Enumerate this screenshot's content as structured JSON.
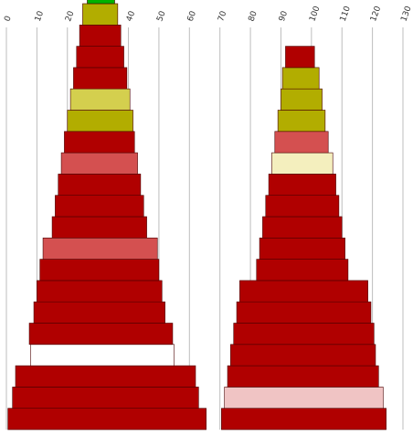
{
  "chart_data": {
    "type": "bar",
    "subtype": "stacked-pyramid",
    "xlim": [
      0,
      130
    ],
    "x_ticks": [
      "0",
      "10",
      "20",
      "30",
      "40",
      "50",
      "60",
      "70",
      "80",
      "90",
      "100",
      "110",
      "120",
      "130"
    ],
    "grid": true,
    "colors": {
      "dark_red": "#b00000",
      "light_red": "#d45050",
      "pink": "#f0c4c4",
      "olive": "#b2ad00",
      "yellow": "#d4cf4e",
      "cream": "#f4efbe",
      "green": "#00b200",
      "white": "#ffffff"
    },
    "stacks": [
      {
        "segments": [
          {
            "start": 0.5,
            "end": 65.5,
            "color": "dark_red"
          },
          {
            "start": 2.0,
            "end": 63.0,
            "color": "dark_red"
          },
          {
            "start": 3.0,
            "end": 62.0,
            "color": "dark_red"
          },
          {
            "start": 8.0,
            "end": 55.0,
            "color": "white"
          },
          {
            "start": 7.5,
            "end": 54.5,
            "color": "dark_red"
          },
          {
            "start": 9.0,
            "end": 52.0,
            "color": "dark_red"
          },
          {
            "start": 10.0,
            "end": 51.0,
            "color": "dark_red"
          },
          {
            "start": 11.0,
            "end": 50.0,
            "color": "dark_red"
          },
          {
            "start": 12.0,
            "end": 49.5,
            "color": "light_red"
          },
          {
            "start": 15.0,
            "end": 46.0,
            "color": "dark_red"
          },
          {
            "start": 16.0,
            "end": 45.0,
            "color": "dark_red"
          },
          {
            "start": 17.0,
            "end": 44.0,
            "color": "dark_red"
          },
          {
            "start": 18.0,
            "end": 43.0,
            "color": "light_red"
          },
          {
            "start": 19.0,
            "end": 42.0,
            "color": "dark_red"
          },
          {
            "start": 20.0,
            "end": 41.5,
            "color": "olive"
          },
          {
            "start": 21.0,
            "end": 40.5,
            "color": "yellow"
          },
          {
            "start": 22.0,
            "end": 39.5,
            "color": "dark_red"
          },
          {
            "start": 23.0,
            "end": 38.5,
            "color": "dark_red"
          },
          {
            "start": 24.0,
            "end": 37.5,
            "color": "dark_red"
          },
          {
            "start": 25.0,
            "end": 36.5,
            "color": "olive"
          },
          {
            "start": 26.5,
            "end": 35.5,
            "color": "green"
          }
        ]
      },
      {
        "segments": [
          {
            "start": 70.5,
            "end": 124.5,
            "color": "dark_red"
          },
          {
            "start": 71.5,
            "end": 123.5,
            "color": "pink"
          },
          {
            "start": 72.5,
            "end": 122.0,
            "color": "dark_red"
          },
          {
            "start": 73.5,
            "end": 121.0,
            "color": "dark_red"
          },
          {
            "start": 74.5,
            "end": 120.5,
            "color": "dark_red"
          },
          {
            "start": 75.5,
            "end": 119.5,
            "color": "dark_red"
          },
          {
            "start": 76.5,
            "end": 118.5,
            "color": "dark_red"
          },
          {
            "start": 82.0,
            "end": 112.0,
            "color": "dark_red"
          },
          {
            "start": 83.0,
            "end": 111.0,
            "color": "dark_red"
          },
          {
            "start": 84.0,
            "end": 110.0,
            "color": "dark_red"
          },
          {
            "start": 85.0,
            "end": 109.0,
            "color": "dark_red"
          },
          {
            "start": 86.0,
            "end": 108.0,
            "color": "dark_red"
          },
          {
            "start": 87.0,
            "end": 107.0,
            "color": "cream"
          },
          {
            "start": 88.0,
            "end": 105.5,
            "color": "light_red"
          },
          {
            "start": 89.0,
            "end": 104.5,
            "color": "olive"
          },
          {
            "start": 90.0,
            "end": 103.5,
            "color": "olive"
          },
          {
            "start": 90.5,
            "end": 102.5,
            "color": "olive"
          },
          {
            "start": 91.5,
            "end": 101.0,
            "color": "dark_red"
          }
        ]
      }
    ]
  }
}
